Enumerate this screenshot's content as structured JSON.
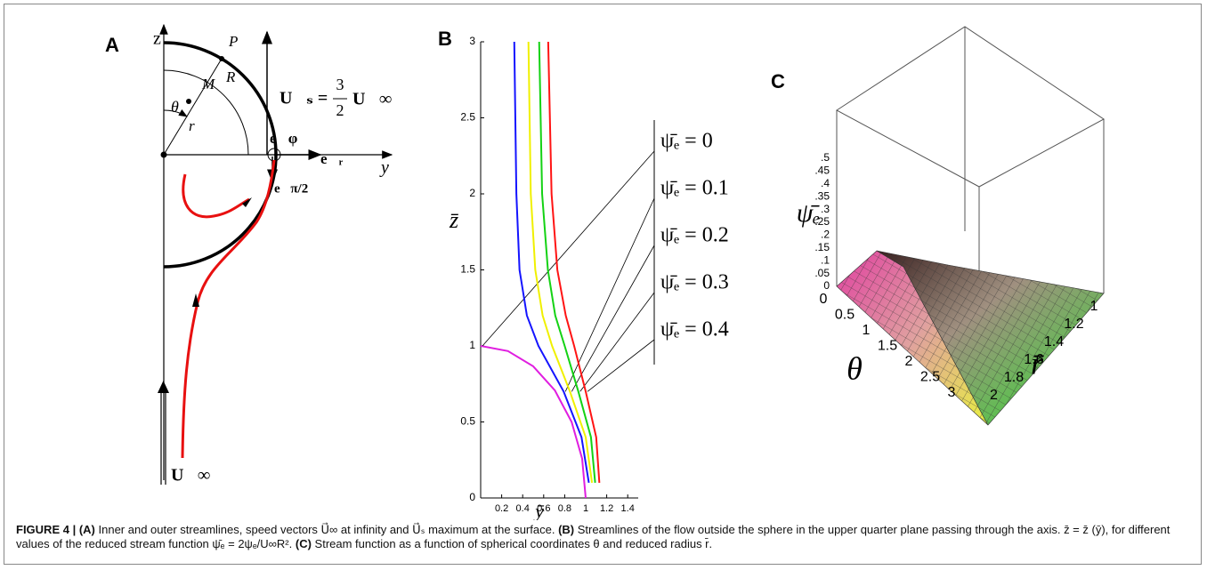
{
  "panel_a": {
    "label": "A",
    "z_axis": "z",
    "y_axis": "y",
    "point_p": "P",
    "point_m": "M",
    "point_r": "R",
    "angle": "θ",
    "radius": "r",
    "us_lhs": "U⃗ₛ =",
    "frac_num": "3",
    "frac_den": "2",
    "us_rhs": "U⃗∞",
    "e_phi": "e⃗φ",
    "e_r": "e⃗ᵣ",
    "e_half_pi": "e⃗π/2",
    "u_inf": "U⃗∞"
  },
  "chart_data": {
    "type": "line",
    "label": "B",
    "x_label": "ȳ",
    "y_label": "z̄",
    "xlim": [
      0,
      1.5
    ],
    "ylim": [
      0,
      3
    ],
    "xticks": [
      0.2,
      0.4,
      0.6,
      0.8,
      1,
      1.2,
      1.4
    ],
    "yticks": [
      0,
      0.5,
      1,
      1.5,
      2,
      2.5,
      3
    ],
    "series": [
      {
        "name": "ψ̄ₑ = 0",
        "color": "#e01ee0",
        "x": [
          0,
          0.26,
          0.5,
          0.707,
          0.866,
          0.966,
          1
        ],
        "y": [
          1,
          0.966,
          0.866,
          0.707,
          0.5,
          0.259,
          0
        ]
      },
      {
        "name": "ψ̄ₑ = 0.1",
        "color": "#1414ff",
        "x": [
          0.32,
          0.34,
          0.37,
          0.44,
          0.55,
          0.79,
          0.96,
          1.03
        ],
        "y": [
          3,
          2,
          1.5,
          1.2,
          1,
          0.7,
          0.4,
          0.1
        ]
      },
      {
        "name": "ψ̄ₑ = 0.2",
        "color": "#f0f000",
        "x": [
          0.455,
          0.477,
          0.52,
          0.59,
          0.68,
          0.85,
          1.0,
          1.06
        ],
        "y": [
          3,
          2,
          1.5,
          1.2,
          1,
          0.7,
          0.4,
          0.1
        ]
      },
      {
        "name": "ψ̄ₑ = 0.3",
        "color": "#14d214",
        "x": [
          0.557,
          0.585,
          0.64,
          0.71,
          0.8,
          0.93,
          1.05,
          1.09
        ],
        "y": [
          3,
          2,
          1.5,
          1.2,
          1,
          0.7,
          0.4,
          0.1
        ]
      },
      {
        "name": "ψ̄ₑ = 0.4",
        "color": "#ff1414",
        "x": [
          0.643,
          0.675,
          0.73,
          0.81,
          0.89,
          1.0,
          1.1,
          1.13
        ],
        "y": [
          3,
          2,
          1.5,
          1.2,
          1,
          0.7,
          0.4,
          0.1
        ]
      }
    ]
  },
  "panel_c": {
    "label": "C",
    "z_title": "ψ̄ₑ",
    "theta_title": "θ",
    "r_title": "r̄",
    "z_ticks": [
      ".5",
      ".45",
      ".4",
      ".35",
      ".3",
      ".25",
      ".2",
      ".15",
      ".1",
      ".05",
      "0"
    ],
    "theta_ticks": [
      "0",
      "0.5",
      "1",
      "1.5",
      "2",
      "2.5",
      "3"
    ],
    "r_ticks": [
      "1",
      "1.2",
      "1.4",
      "1.6",
      "1.8",
      "2"
    ]
  },
  "caption": {
    "figure": "FIGURE 4 |",
    "parts": [
      {
        "tag": "(A)",
        "text": "Inner and outer streamlines, speed vectors U⃗∞ at infinity and U⃗ₛ maximum at the surface."
      },
      {
        "tag": "(B)",
        "text": "Streamlines of the flow outside the sphere in the upper quarter plane passing through the axis. z̄ = z̄ (ȳ), for different values of the reduced stream function ψ̄ₑ = 2ψₑ/U∞R². "
      },
      {
        "tag": "(C)",
        "text": "Stream function as a function of spherical coordinates θ and reduced radius r̄."
      }
    ]
  }
}
